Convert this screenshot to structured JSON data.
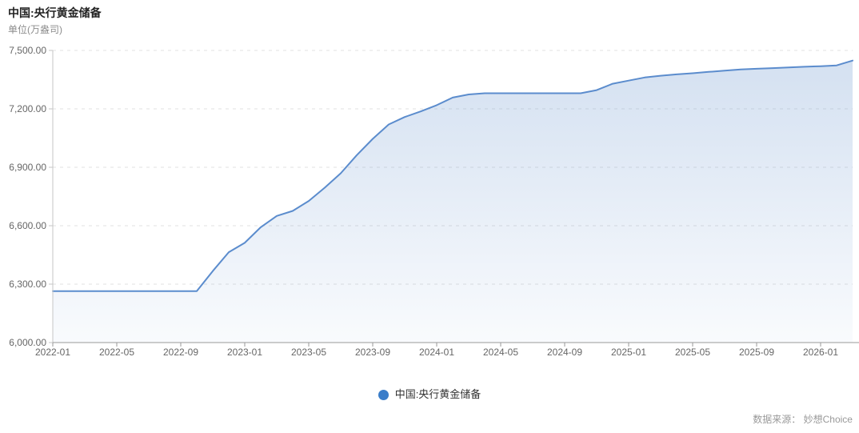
{
  "header": {
    "title": "中国:央行黄金储备",
    "unit_label": "单位(万盎司)"
  },
  "legend": {
    "series_label": "中国:央行黄金储备"
  },
  "footer": {
    "source_label": "数据来源： 妙想Choice"
  },
  "chart_data": {
    "type": "area",
    "title": "中国:央行黄金储备",
    "xlabel": "",
    "ylabel": "单位(万盎司)",
    "series_name": "中国:央行黄金储备",
    "x": [
      "2022-01",
      "2022-02",
      "2022-03",
      "2022-04",
      "2022-05",
      "2022-06",
      "2022-07",
      "2022-08",
      "2022-09",
      "2022-10",
      "2022-11",
      "2022-12",
      "2023-01",
      "2023-02",
      "2023-03",
      "2023-04",
      "2023-05",
      "2023-06",
      "2023-07",
      "2023-08",
      "2023-09",
      "2023-10",
      "2023-11",
      "2023-12",
      "2024-01",
      "2024-02",
      "2024-03",
      "2024-04",
      "2024-05",
      "2024-06",
      "2024-07",
      "2024-08",
      "2024-09",
      "2024-10",
      "2024-11",
      "2024-12",
      "2025-01",
      "2025-02",
      "2025-03",
      "2025-04",
      "2025-05",
      "2025-06",
      "2025-07",
      "2025-08",
      "2025-09",
      "2025-10",
      "2025-11",
      "2025-12",
      "2026-01",
      "2026-02",
      "2026-03"
    ],
    "values": [
      6264,
      6264,
      6264,
      6264,
      6264,
      6264,
      6264,
      6264,
      6264,
      6264,
      6367,
      6464,
      6512,
      6592,
      6650,
      6676,
      6727,
      6795,
      6869,
      6962,
      7046,
      7120,
      7158,
      7187,
      7219,
      7258,
      7274,
      7280,
      7280,
      7280,
      7280,
      7280,
      7280,
      7280,
      7296,
      7329,
      7345,
      7361,
      7370,
      7377,
      7383,
      7390,
      7396,
      7402,
      7406,
      7409,
      7413,
      7416,
      7419,
      7423,
      7448
    ],
    "x_tick_labels": [
      "2022-01",
      "2022-05",
      "2022-09",
      "2023-01",
      "2023-05",
      "2023-09",
      "2024-01",
      "2024-05",
      "2024-09",
      "2025-01",
      "2025-05",
      "2025-09",
      "2026-01"
    ],
    "y_ticks": [
      6000,
      6300,
      6600,
      6900,
      7200,
      7500
    ],
    "y_tick_labels": [
      "6,000.00",
      "6,300.00",
      "6,600.00",
      "6,900.00",
      "7,200.00",
      "7,500.00"
    ],
    "ylim": [
      6000,
      7500
    ],
    "grid": "horizontal-dashed",
    "legend_position": "bottom-center",
    "colors": {
      "line": "#5b8ccd",
      "marker": "#3a7dc9",
      "area_top": "rgba(101,146,205,0.28)",
      "area_bottom": "rgba(101,146,205,0.04)",
      "x_axis": "#999999",
      "y_axis": "#c6c6c6",
      "grid": "#e1e1e1",
      "tick_text": "#666666"
    }
  }
}
